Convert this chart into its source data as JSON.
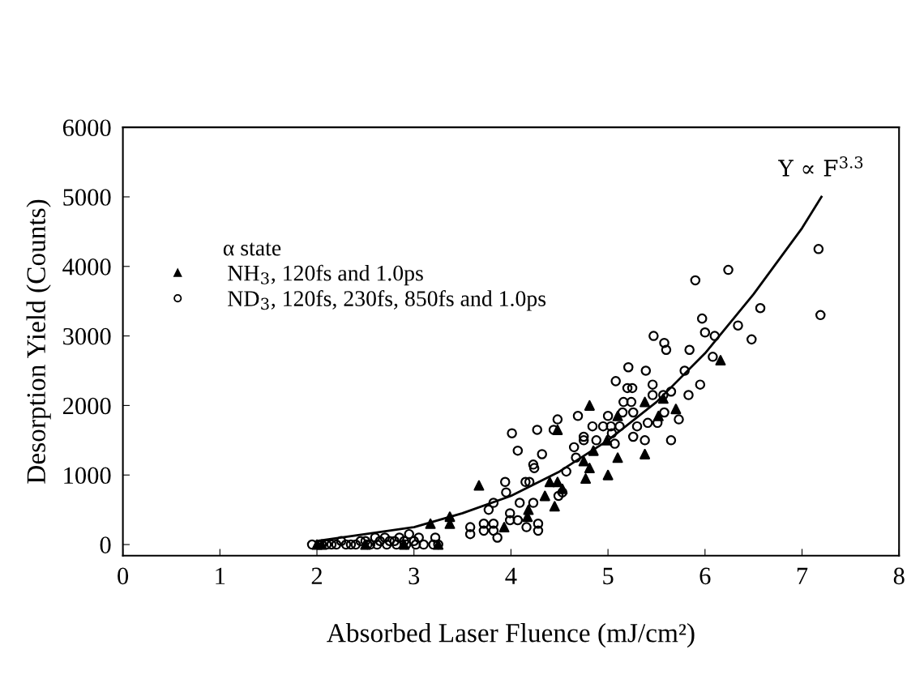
{
  "chart_data": {
    "type": "scatter",
    "xlabel": "Absorbed Laser Fluence (mJ/cm²)",
    "ylabel": "Desorption Yield (Counts)",
    "xlim": [
      0,
      8
    ],
    "ylim": [
      -160,
      6000
    ],
    "xticks": [
      0,
      1,
      2,
      3,
      4,
      5,
      6,
      7,
      8
    ],
    "yticks": [
      0,
      1000,
      2000,
      3000,
      4000,
      5000,
      6000
    ],
    "grid": false,
    "legend": "top left",
    "legend_title": "α state",
    "annotations": [
      {
        "text": "Y ∝ F$^{3.3}$",
        "x": 7.2,
        "y": 5000
      }
    ],
    "series": [
      {
        "name": "NH$_{3}$, 120fs and 1.0ps",
        "marker": "triangle",
        "color": "#000000",
        "x": [
          2.0,
          2.05,
          2.5,
          2.9,
          3.25,
          3.17,
          3.37,
          3.37,
          3.67,
          3.93,
          4.17,
          4.18,
          4.35,
          4.45,
          4.4,
          4.48,
          4.53,
          4.48,
          4.75,
          4.77,
          4.81,
          4.81,
          4.85,
          5.0,
          4.99,
          5.1,
          5.1,
          5.38,
          5.38,
          5.52,
          5.7,
          5.57,
          6.16
        ],
        "values": [
          0,
          0,
          0,
          0,
          0,
          300,
          400,
          300,
          850,
          250,
          400,
          500,
          700,
          550,
          900,
          900,
          800,
          1650,
          1200,
          950,
          1100,
          2000,
          1350,
          1000,
          1500,
          1250,
          1850,
          1300,
          2050,
          1850,
          1950,
          2100,
          2650
        ]
      },
      {
        "name": "ND$_{3}$, 120fs, 230fs, 850fs and 1.0ps",
        "marker": "circle",
        "color": "#000000",
        "x": [
          1.95,
          2.05,
          2.1,
          2.15,
          2.2,
          2.25,
          2.3,
          2.35,
          2.4,
          2.45,
          2.5,
          2.52,
          2.55,
          2.6,
          2.62,
          2.65,
          2.7,
          2.72,
          2.75,
          2.8,
          2.82,
          2.85,
          2.9,
          2.92,
          2.95,
          3.0,
          3.02,
          3.05,
          3.1,
          3.2,
          3.22,
          3.25,
          3.58,
          3.58,
          3.72,
          3.72,
          3.82,
          3.82,
          3.86,
          3.77,
          3.82,
          3.94,
          3.95,
          3.99,
          3.99,
          4.01,
          4.07,
          4.09,
          4.07,
          4.15,
          4.19,
          4.16,
          4.23,
          4.23,
          4.24,
          4.27,
          4.28,
          4.28,
          4.32,
          4.44,
          4.48,
          4.53,
          4.49,
          4.57,
          4.65,
          4.69,
          4.67,
          4.75,
          4.75,
          4.84,
          4.88,
          4.95,
          5.0,
          5.03,
          5.04,
          5.07,
          5.08,
          5.12,
          5.15,
          5.16,
          5.2,
          5.21,
          5.24,
          5.25,
          5.26,
          5.26,
          5.3,
          5.38,
          5.39,
          5.41,
          5.46,
          5.47,
          5.46,
          5.51,
          5.57,
          5.58,
          5.58,
          5.6,
          5.65,
          5.65,
          5.73,
          5.79,
          5.83,
          5.84,
          5.9,
          5.95,
          5.97,
          6.0,
          6.08,
          6.1,
          6.24,
          6.34,
          6.48,
          6.57,
          7.17,
          7.19
        ],
        "values": [
          0,
          0,
          0,
          0,
          0,
          50,
          0,
          0,
          0,
          50,
          50,
          0,
          0,
          100,
          0,
          50,
          100,
          0,
          50,
          50,
          0,
          100,
          50,
          0,
          150,
          50,
          0,
          100,
          0,
          0,
          100,
          0,
          250,
          150,
          300,
          200,
          300,
          200,
          100,
          500,
          600,
          900,
          750,
          450,
          350,
          1600,
          1350,
          600,
          350,
          900,
          900,
          250,
          600,
          1150,
          1100,
          1650,
          300,
          200,
          1300,
          1650,
          1800,
          750,
          700,
          1050,
          1400,
          1850,
          1250,
          1550,
          1500,
          1700,
          1500,
          1700,
          1850,
          1700,
          1600,
          1450,
          2350,
          1700,
          1900,
          2050,
          2250,
          2550,
          2050,
          2250,
          1900,
          1550,
          1700,
          1500,
          2500,
          1750,
          2300,
          3000,
          2150,
          1750,
          2150,
          1900,
          2900,
          2800,
          1500,
          2200,
          1800,
          2500,
          2150,
          2800,
          3800,
          2300,
          3250,
          3050,
          2700,
          3000,
          3950,
          3150,
          2950,
          3400,
          4250,
          3300
        ]
      },
      {
        "type": "line",
        "marker": "none",
        "line_style": "solid",
        "color": "#000000",
        "x": [
          2.0,
          2.5,
          3.0,
          3.5,
          4.0,
          4.5,
          5.0,
          5.5,
          6.0,
          6.5,
          7.0,
          7.2
        ],
        "values": [
          50,
          150,
          250,
          450,
          700,
          1050,
          1500,
          2050,
          2750,
          3600,
          4550,
          5000
        ]
      }
    ]
  }
}
